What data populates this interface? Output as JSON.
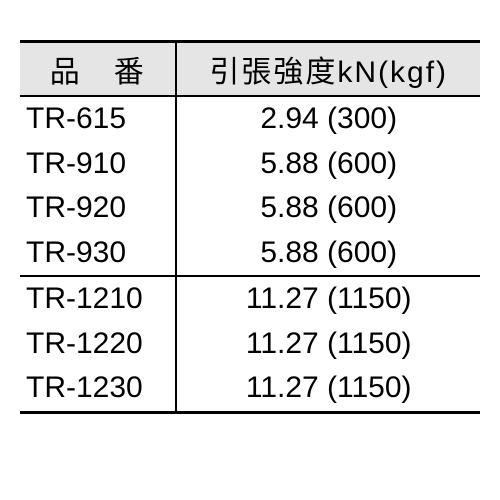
{
  "table": {
    "type": "table",
    "columns": [
      {
        "label": "品　番",
        "align": "left"
      },
      {
        "label": "引張強度kN(kgf)",
        "align": "center"
      }
    ],
    "rows": [
      {
        "c0": "TR-615",
        "c1": "2.94 (300)",
        "sep": false
      },
      {
        "c0": "TR-910",
        "c1": "5.88 (600)",
        "sep": false
      },
      {
        "c0": "TR-920",
        "c1": "5.88 (600)",
        "sep": false
      },
      {
        "c0": "TR-930",
        "c1": "5.88 (600)",
        "sep": false
      },
      {
        "c0": "TR-1210",
        "c1": "11.27 (1150)",
        "sep": true
      },
      {
        "c0": "TR-1220",
        "c1": "11.27 (1150)",
        "sep": false
      },
      {
        "c0": "TR-1230",
        "c1": "11.27 (1150)",
        "sep": false
      }
    ],
    "colors": {
      "header_bg": "#e5e5e5",
      "border": "#000000",
      "text": "#000000",
      "background": "#ffffff"
    },
    "font_size_pt": 22,
    "border_widths": {
      "outer": 3,
      "inner": 2
    }
  }
}
